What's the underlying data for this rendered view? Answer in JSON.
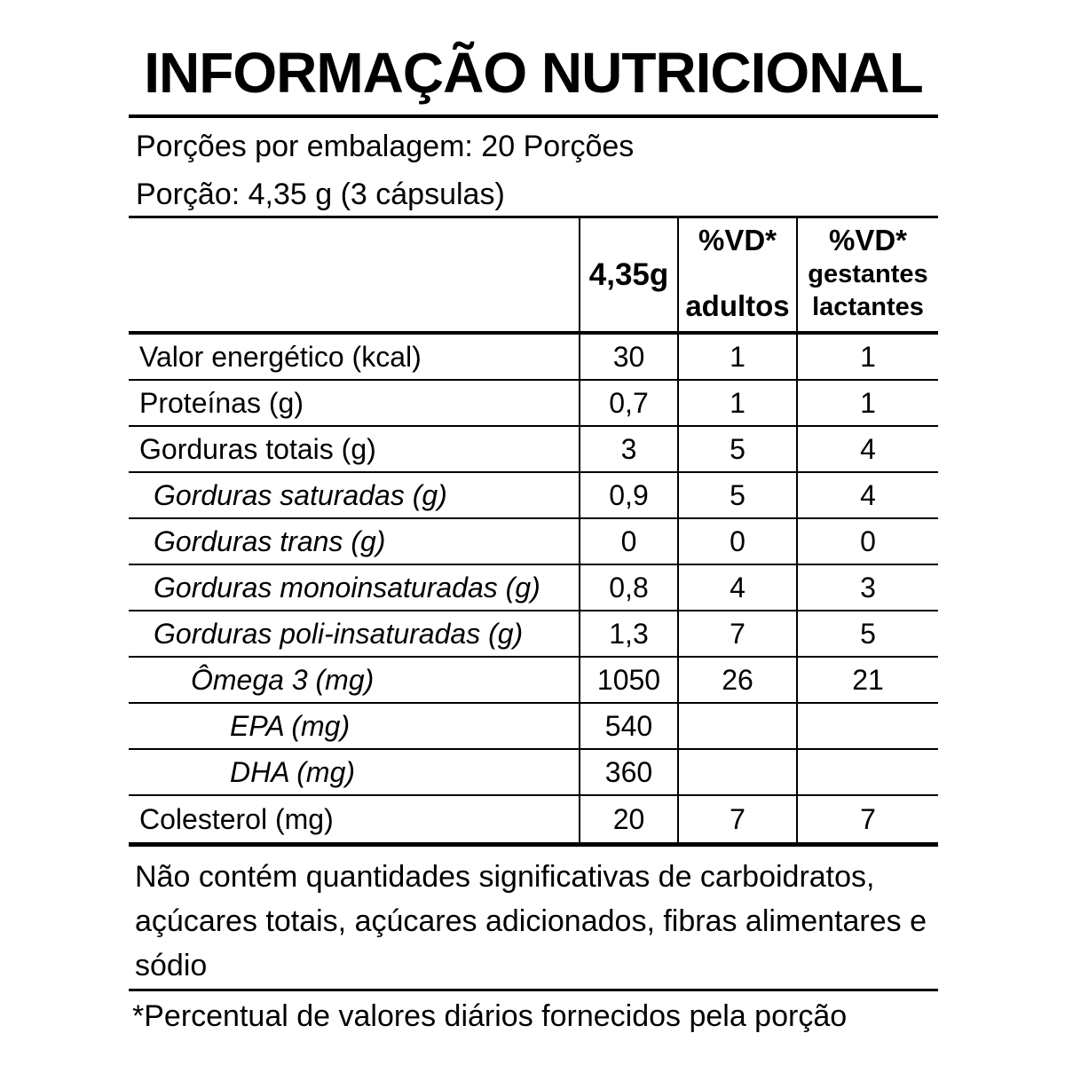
{
  "title": "INFORMAÇÃO NUTRICIONAL",
  "serving_info": {
    "servings_per_package": "Porções por embalagem: 20 Porções",
    "serving_size": "Porção: 4,35 g (3 cápsulas)"
  },
  "table": {
    "header": {
      "amount_label": "4,35g",
      "vd_adults_label": "%VD*",
      "vd_adults_sub": "adultos",
      "vd_pregnant_label": "%VD*",
      "vd_pregnant_sub1": "gestantes",
      "vd_pregnant_sub2": "lactantes"
    },
    "rows": [
      {
        "label": "Valor energético (kcal)",
        "amount": "30",
        "vd_adults": "1",
        "vd_pregnant": "1"
      },
      {
        "label": "Proteínas (g)",
        "amount": "0,7",
        "vd_adults": "1",
        "vd_pregnant": "1"
      },
      {
        "label": "Gorduras totais (g)",
        "amount": "3",
        "vd_adults": "5",
        "vd_pregnant": "4"
      },
      {
        "label": "Gorduras saturadas (g)",
        "amount": "0,9",
        "vd_adults": "5",
        "vd_pregnant": "4"
      },
      {
        "label": "Gorduras trans (g)",
        "amount": "0",
        "vd_adults": "0",
        "vd_pregnant": "0"
      },
      {
        "label": "Gorduras monoinsaturadas (g)",
        "amount": "0,8",
        "vd_adults": "4",
        "vd_pregnant": "3"
      },
      {
        "label": "Gorduras poli-insaturadas (g)",
        "amount": "1,3",
        "vd_adults": "7",
        "vd_pregnant": "5"
      },
      {
        "label": "Ômega 3 (mg)",
        "amount": "1050",
        "vd_adults": "26",
        "vd_pregnant": "21"
      },
      {
        "label": "EPA (mg)",
        "amount": "540",
        "vd_adults": "",
        "vd_pregnant": ""
      },
      {
        "label": "DHA (mg)",
        "amount": "360",
        "vd_adults": "",
        "vd_pregnant": ""
      },
      {
        "label": "Colesterol (mg)",
        "amount": "20",
        "vd_adults": "7",
        "vd_pregnant": "7"
      }
    ]
  },
  "notes": {
    "no_significant_amounts": "Não contém quantidades significativas de carboidratos, açúcares totais, açúcares adicionados, fibras alimentares e sódio",
    "daily_values_footnote": "*Percentual de valores diários fornecidos pela porção"
  },
  "colors": {
    "text": "#000000",
    "background": "#ffffff",
    "border": "#000000"
  }
}
